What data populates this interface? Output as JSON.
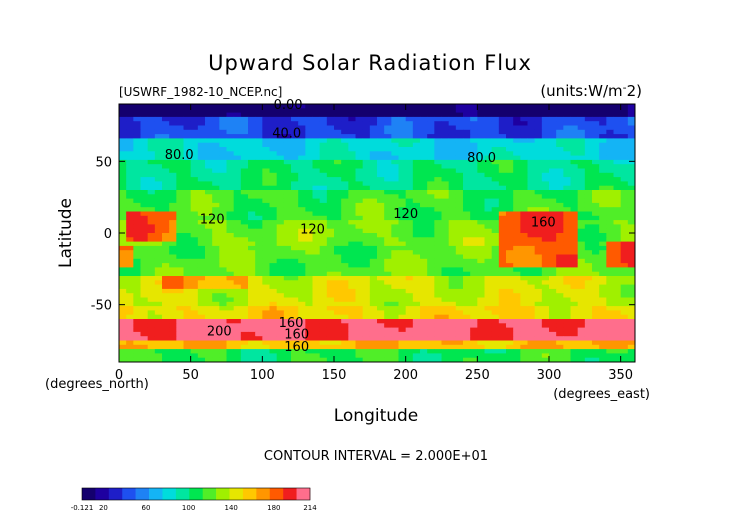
{
  "chart_data": {
    "type": "heatmap",
    "title": "Upward Solar Radiation Flux",
    "dataset_label": "[USWRF_1982-10_NCEP.nc]",
    "units_label": "(units:W/m^-2)",
    "xlabel": "Longitude",
    "ylabel": "Latitude",
    "x_units_label": "(degrees_east)",
    "y_units_label": "(degrees_north)",
    "xlim": [
      0,
      360
    ],
    "ylim": [
      -90,
      90
    ],
    "x_ticks": [
      "0",
      "50",
      "100",
      "150",
      "200",
      "250",
      "300",
      "350"
    ],
    "x_tick_values": [
      0,
      50,
      100,
      150,
      200,
      250,
      300,
      350
    ],
    "y_ticks": [
      "50",
      "0",
      "-50"
    ],
    "y_tick_values": [
      50,
      0,
      -50
    ],
    "contour_interval_text": "CONTOUR INTERVAL = 2.000E+01",
    "contour_labels": [
      {
        "text": "0.00",
        "lon": 118,
        "lat": 90
      },
      {
        "text": "40.0",
        "lon": 117,
        "lat": 70
      },
      {
        "text": "80.0",
        "lon": 42,
        "lat": 55
      },
      {
        "text": "80.0",
        "lon": 253,
        "lat": 53
      },
      {
        "text": "120",
        "lon": 200,
        "lat": 14
      },
      {
        "text": "120",
        "lon": 135,
        "lat": 3
      },
      {
        "text": "120",
        "lon": 65,
        "lat": 10
      },
      {
        "text": "160",
        "lon": 296,
        "lat": 8
      },
      {
        "text": "160",
        "lon": 120,
        "lat": -62
      },
      {
        "text": "200",
        "lon": 70,
        "lat": -68
      },
      {
        "text": "160",
        "lon": 124,
        "lat": -70
      },
      {
        "text": "160",
        "lon": 124,
        "lat": -79
      }
    ],
    "field_summary": {
      "by_latitude_band": [
        {
          "lat": [
            80,
            90
          ],
          "value": 0
        },
        {
          "lat": [
            65,
            80
          ],
          "value": 40
        },
        {
          "lat": [
            50,
            65
          ],
          "value": 80
        },
        {
          "lat": [
            30,
            50
          ],
          "value": 100
        },
        {
          "lat": [
            10,
            30
          ],
          "value": 115
        },
        {
          "lat": [
            -10,
            10
          ],
          "value": 125
        },
        {
          "lat": [
            -30,
            -10
          ],
          "value": 120
        },
        {
          "lat": [
            -50,
            -30
          ],
          "value": 140
        },
        {
          "lat": [
            -60,
            -50
          ],
          "value": 150
        },
        {
          "lat": [
            -75,
            -60
          ],
          "value": 205
        },
        {
          "lat": [
            -82,
            -75
          ],
          "value": 160
        },
        {
          "lat": [
            -90,
            -82
          ],
          "value": 110
        }
      ],
      "hotspots": [
        {
          "lon": [
            5,
            40
          ],
          "lat": [
            -5,
            15
          ],
          "value": 180
        },
        {
          "lon": [
            265,
            320
          ],
          "lat": [
            -25,
            15
          ],
          "value": 185
        },
        {
          "lon": [
            340,
            360
          ],
          "lat": [
            -25,
            -5
          ],
          "value": 185
        },
        {
          "lon": [
            0,
            10
          ],
          "lat": [
            -25,
            -10
          ],
          "value": 180
        },
        {
          "lon": [
            30,
            90
          ],
          "lat": [
            -40,
            -30
          ],
          "value": 165
        }
      ]
    },
    "colorbar": {
      "range": [
        -0.121,
        214
      ],
      "tick_labels": [
        "-0.121",
        "20",
        "60",
        "100",
        "140",
        "180",
        "214"
      ],
      "tick_values": [
        -0.121,
        20,
        60,
        100,
        140,
        180,
        214
      ],
      "colors": [
        "#14006e",
        "#1e00a0",
        "#1e1ec8",
        "#1e50f0",
        "#1e82f5",
        "#14b4f5",
        "#00dcdc",
        "#00e6a0",
        "#00e650",
        "#50ee28",
        "#a0f000",
        "#e6e600",
        "#ffc800",
        "#ff9600",
        "#ff5a00",
        "#f01e1e",
        "#ff6e8c"
      ]
    }
  }
}
